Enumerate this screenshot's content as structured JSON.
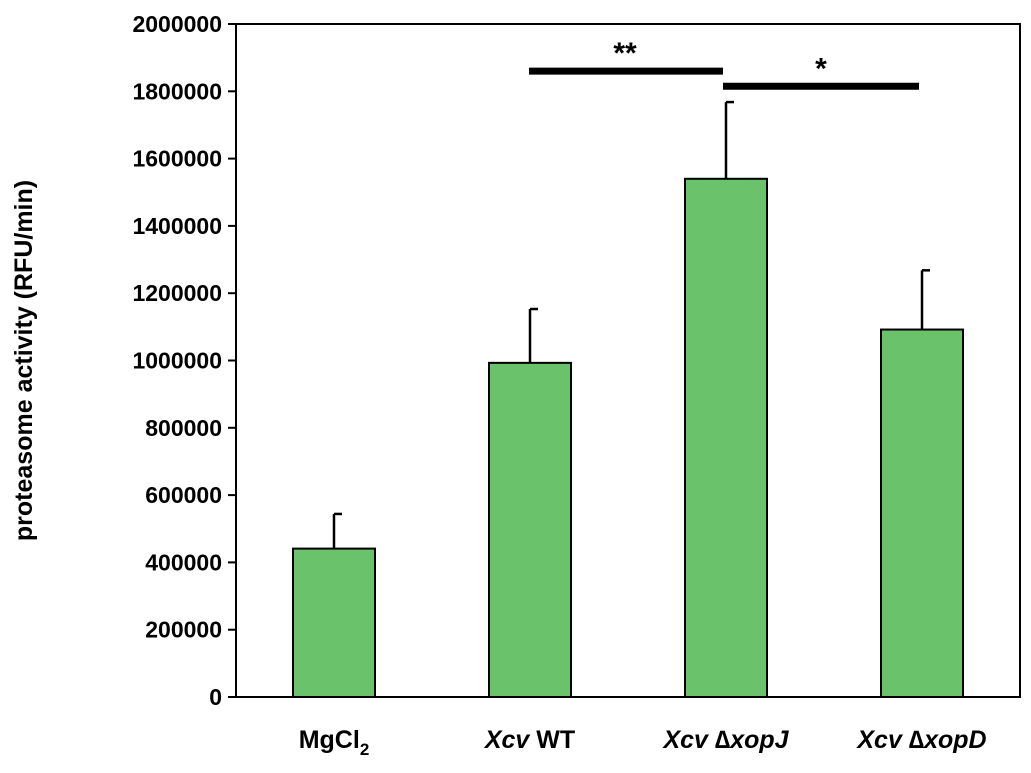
{
  "chart_data": {
    "type": "bar",
    "ylabel": "proteasome activity (RFU/min)",
    "ylim": [
      0,
      2000000
    ],
    "yticks": [
      0,
      200000,
      400000,
      600000,
      800000,
      1000000,
      1200000,
      1400000,
      1600000,
      1800000,
      2000000
    ],
    "categories": [
      {
        "parts": [
          {
            "text": "MgCl",
            "italic": false
          },
          {
            "text": "2",
            "italic": false,
            "sub": true
          }
        ]
      },
      {
        "parts": [
          {
            "text": "Xcv",
            "italic": true
          },
          {
            "text": " WT",
            "italic": false
          }
        ]
      },
      {
        "parts": [
          {
            "text": "Xcv",
            "italic": true
          },
          {
            "text": " ∆",
            "italic": false
          },
          {
            "text": "xopJ",
            "italic": true
          }
        ]
      },
      {
        "parts": [
          {
            "text": "Xcv",
            "italic": true
          },
          {
            "text": " ∆",
            "italic": false
          },
          {
            "text": "xopD",
            "italic": true
          }
        ]
      }
    ],
    "values": [
      441000,
      993000,
      1540000,
      1092000
    ],
    "errors": [
      103000,
      160000,
      228000,
      176000
    ],
    "bar_color": "#6ac26a",
    "bar_edge_color": "#000000",
    "significance": [
      {
        "from": 1,
        "to": 2,
        "label": "**",
        "y": 1860000
      },
      {
        "from": 2,
        "to": 3,
        "label": "*",
        "y": 1815000
      }
    ],
    "grid": false,
    "legend": "none"
  }
}
